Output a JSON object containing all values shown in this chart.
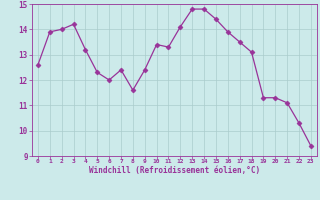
{
  "x": [
    0,
    1,
    2,
    3,
    4,
    5,
    6,
    7,
    8,
    9,
    10,
    11,
    12,
    13,
    14,
    15,
    16,
    17,
    18,
    19,
    20,
    21,
    22,
    23
  ],
  "y": [
    12.6,
    13.9,
    14.0,
    14.2,
    13.2,
    12.3,
    12.0,
    12.4,
    11.6,
    12.4,
    13.4,
    13.3,
    14.1,
    14.8,
    14.8,
    14.4,
    13.9,
    13.5,
    13.1,
    11.3,
    11.3,
    11.1,
    10.3,
    9.4
  ],
  "line_color": "#993399",
  "marker": "D",
  "marker_size": 2.5,
  "bg_color": "#cceaea",
  "grid_color": "#aacccc",
  "xlabel": "Windchill (Refroidissement éolien,°C)",
  "xlabel_color": "#993399",
  "tick_color": "#993399",
  "ylim": [
    9,
    15
  ],
  "xlim": [
    -0.5,
    23.5
  ],
  "yticks": [
    9,
    10,
    11,
    12,
    13,
    14,
    15
  ],
  "xticks": [
    0,
    1,
    2,
    3,
    4,
    5,
    6,
    7,
    8,
    9,
    10,
    11,
    12,
    13,
    14,
    15,
    16,
    17,
    18,
    19,
    20,
    21,
    22,
    23
  ],
  "xtick_labels": [
    "0",
    "1",
    "2",
    "3",
    "4",
    "5",
    "6",
    "7",
    "8",
    "9",
    "10",
    "11",
    "12",
    "13",
    "14",
    "15",
    "16",
    "17",
    "18",
    "19",
    "20",
    "21",
    "22",
    "23"
  ]
}
